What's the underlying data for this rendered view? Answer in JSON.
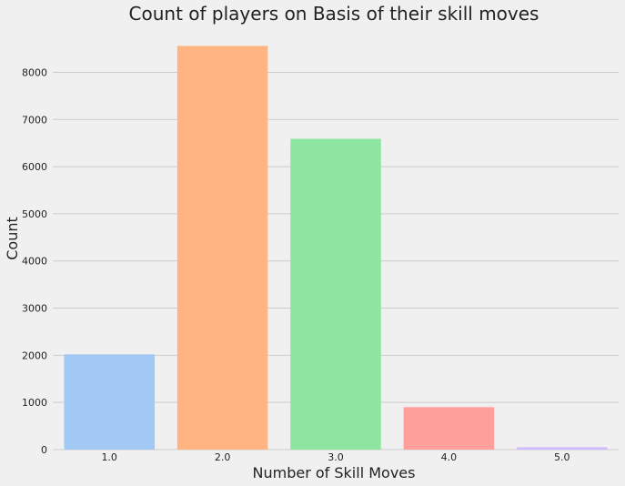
{
  "chart_data": {
    "type": "bar",
    "title": "Count of players on Basis of their skill moves",
    "xlabel": "Number of Skill Moves",
    "ylabel": "Count",
    "categories": [
      "1.0",
      "2.0",
      "3.0",
      "4.0",
      "5.0"
    ],
    "values": [
      2020,
      8560,
      6590,
      900,
      50
    ],
    "colors": [
      "#a1c9f4",
      "#ffb482",
      "#8de5a1",
      "#ff9f9b",
      "#d0bbff"
    ],
    "ylim": [
      0,
      8800
    ],
    "yticks": [
      0,
      1000,
      2000,
      3000,
      4000,
      5000,
      6000,
      7000,
      8000
    ],
    "grid": "horizontal",
    "background": "#f0f0f0",
    "grid_color": "#cbcbcb"
  }
}
